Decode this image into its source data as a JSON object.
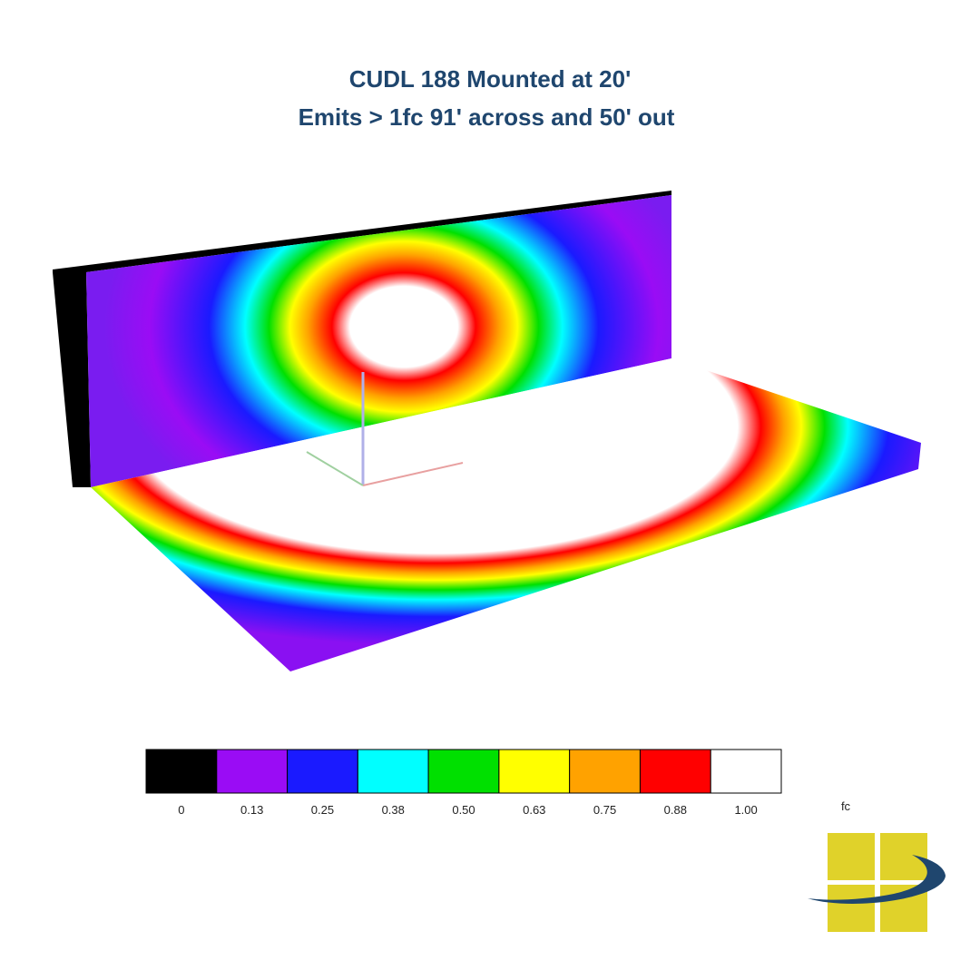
{
  "header": {
    "title_line1": "CUDL 188 Mounted at 20'",
    "title_line2": "Emits > 1fc 91' across and 50' out"
  },
  "legend": {
    "entries": [
      {
        "label": "0",
        "color": "#000000"
      },
      {
        "label": "0.13",
        "color": "#9a0cf5"
      },
      {
        "label": "0.25",
        "color": "#1a1aff"
      },
      {
        "label": "0.38",
        "color": "#00ffff"
      },
      {
        "label": "0.50",
        "color": "#00e000"
      },
      {
        "label": "0.63",
        "color": "#ffff00"
      },
      {
        "label": "0.75",
        "color": "#ffa200"
      },
      {
        "label": "0.88",
        "color": "#ff0000"
      },
      {
        "label": "1.00",
        "color": "#ffffff"
      }
    ],
    "unit": "fc"
  }
}
